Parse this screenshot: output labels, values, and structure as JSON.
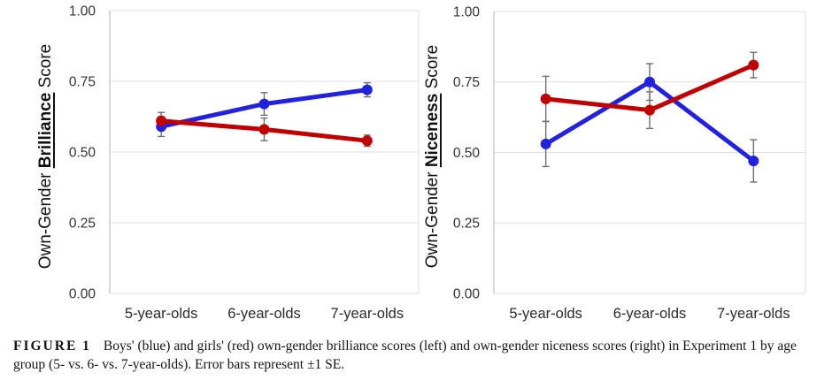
{
  "figure": {
    "caption_label": "FIGURE 1",
    "caption_text": "Boys' (blue) and girls' (red) own-gender brilliance scores (left) and own-gender niceness scores (right) in Experiment 1 by age group (5- vs. 6- vs. 7-year-olds). Error bars represent ±1 SE."
  },
  "colors": {
    "boys_blue": "#2222DD",
    "girls_red": "#C00000",
    "error_bar": "#6F6F6F",
    "gridline": "#E0E0E0",
    "axis_line": "#C0C0C0",
    "tick_text": "#333333"
  },
  "chart_data": [
    {
      "type": "line",
      "title": "",
      "ylabel": "Own-Gender Brilliance Score",
      "ylabel_parts": {
        "prefix": "Own-Gender ",
        "emph": "Brilliance",
        "suffix": " Score"
      },
      "categories": [
        "5-year-olds",
        "6-year-olds",
        "7-year-olds"
      ],
      "ytick_labels": [
        "0.00",
        "0.25",
        "0.50",
        "0.75",
        "1.00"
      ],
      "ylim": [
        0,
        1
      ],
      "grid": true,
      "legend_position": "none",
      "error_bars": "±1 SE",
      "series": [
        {
          "name": "Boys (blue)",
          "color_key": "boys_blue",
          "values": [
            0.59,
            0.67,
            0.72
          ],
          "se": [
            0.035,
            0.04,
            0.025
          ]
        },
        {
          "name": "Girls (red)",
          "color_key": "girls_red",
          "values": [
            0.61,
            0.58,
            0.54
          ],
          "se": [
            0.03,
            0.04,
            0.02
          ]
        }
      ]
    },
    {
      "type": "line",
      "title": "",
      "ylabel": "Own-Gender Niceness Score",
      "ylabel_parts": {
        "prefix": "Own-Gender ",
        "emph": "Niceness",
        "suffix": " Score"
      },
      "categories": [
        "5-year-olds",
        "6-year-olds",
        "7-year-olds"
      ],
      "ytick_labels": [
        "0.00",
        "0.25",
        "0.50",
        "0.75",
        "1.00"
      ],
      "ylim": [
        0,
        1
      ],
      "grid": true,
      "legend_position": "none",
      "error_bars": "±1 SE",
      "series": [
        {
          "name": "Boys (blue)",
          "color_key": "boys_blue",
          "values": [
            0.53,
            0.75,
            0.47
          ],
          "se": [
            0.08,
            0.065,
            0.075
          ]
        },
        {
          "name": "Girls (red)",
          "color_key": "girls_red",
          "values": [
            0.69,
            0.65,
            0.81
          ],
          "se": [
            0.08,
            0.065,
            0.045
          ]
        }
      ]
    }
  ]
}
